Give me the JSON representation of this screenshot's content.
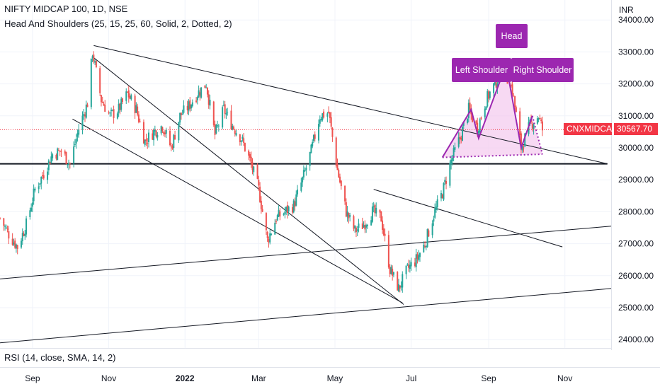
{
  "header": {
    "title": "NIFTY MIDCAP 100, 1D, NSE",
    "indicator": "Head And Shoulders (25, 15, 25, 60, Solid, 2, Dotted, 2)",
    "rsi": "RSI (14, close, SMA, 14, 2)"
  },
  "chart_data": {
    "type": "candlestick",
    "currency": "INR",
    "price_axis": {
      "ticks": [
        "34000.00",
        "33000.00",
        "32000.00",
        "31000.00",
        "30000.00",
        "29000.00",
        "28000.00",
        "27000.00",
        "26000.00",
        "25000.00",
        "24000.00"
      ],
      "ylim": [
        23800,
        34200
      ]
    },
    "time_axis": {
      "ticks": [
        "Sep",
        "Nov",
        "2022",
        "Mar",
        "May",
        "Jul",
        "Sep",
        "Nov"
      ],
      "start": "2021-08-06",
      "end": "2022-12-08"
    },
    "pattern_labels": [
      "Head",
      "Left Shoulder",
      "Right Shoulder"
    ],
    "last_price": {
      "symbol": "CNXMIDCAP",
      "value": "30567.70"
    },
    "closes": [
      [
        "2021-08-06",
        27800
      ],
      [
        "2021-08-13",
        27300
      ],
      [
        "2021-08-20",
        26900
      ],
      [
        "2021-08-27",
        27600
      ],
      [
        "2021-09-03",
        28700
      ],
      [
        "2021-09-10",
        29200
      ],
      [
        "2021-09-17",
        29800
      ],
      [
        "2021-09-24",
        29900
      ],
      [
        "2021-10-01",
        29500
      ],
      [
        "2021-10-08",
        30600
      ],
      [
        "2021-10-15",
        31400
      ],
      [
        "2021-10-19",
        33000
      ],
      [
        "2021-10-26",
        31500
      ],
      [
        "2021-11-02",
        31000
      ],
      [
        "2021-11-09",
        31200
      ],
      [
        "2021-11-16",
        31700
      ],
      [
        "2021-11-23",
        31200
      ],
      [
        "2021-11-30",
        30200
      ],
      [
        "2021-12-07",
        30500
      ],
      [
        "2021-12-14",
        30700
      ],
      [
        "2021-12-21",
        30000
      ],
      [
        "2021-12-28",
        31000
      ],
      [
        "2022-01-04",
        31300
      ],
      [
        "2022-01-11",
        31700
      ],
      [
        "2022-01-18",
        32000
      ],
      [
        "2022-01-25",
        30400
      ],
      [
        "2022-02-01",
        31200
      ],
      [
        "2022-02-08",
        30700
      ],
      [
        "2022-02-15",
        30300
      ],
      [
        "2022-02-22",
        29600
      ],
      [
        "2022-03-01",
        28700
      ],
      [
        "2022-03-08",
        27100
      ],
      [
        "2022-03-15",
        27800
      ],
      [
        "2022-03-22",
        28000
      ],
      [
        "2022-03-29",
        28200
      ],
      [
        "2022-04-05",
        29000
      ],
      [
        "2022-04-12",
        29900
      ],
      [
        "2022-04-19",
        31000
      ],
      [
        "2022-04-26",
        31100
      ],
      [
        "2022-05-03",
        29300
      ],
      [
        "2022-05-10",
        28000
      ],
      [
        "2022-05-17",
        27400
      ],
      [
        "2022-05-24",
        27600
      ],
      [
        "2022-05-31",
        28000
      ],
      [
        "2022-06-07",
        27800
      ],
      [
        "2022-06-14",
        26200
      ],
      [
        "2022-06-21",
        25600
      ],
      [
        "2022-06-28",
        26200
      ],
      [
        "2022-07-05",
        26500
      ],
      [
        "2022-07-12",
        27000
      ],
      [
        "2022-07-19",
        27900
      ],
      [
        "2022-07-26",
        28600
      ],
      [
        "2022-08-02",
        29600
      ],
      [
        "2022-08-09",
        30300
      ],
      [
        "2022-08-16",
        31200
      ],
      [
        "2022-08-23",
        30600
      ],
      [
        "2022-08-30",
        31500
      ],
      [
        "2022-09-06",
        32000
      ],
      [
        "2022-09-13",
        32500
      ],
      [
        "2022-09-20",
        31800
      ],
      [
        "2022-09-27",
        30000
      ],
      [
        "2022-10-04",
        30700
      ],
      [
        "2022-10-11",
        31000
      ],
      [
        "2022-10-14",
        30567.7
      ]
    ]
  },
  "colors": {
    "up": "#26a69a",
    "down": "#ef5350",
    "pattern_fill": "#f3c9ee",
    "pattern_line": "#9c27b0",
    "label_bg": "#9c27b0",
    "price_tag": "#f23645",
    "trendline": "#131722"
  }
}
